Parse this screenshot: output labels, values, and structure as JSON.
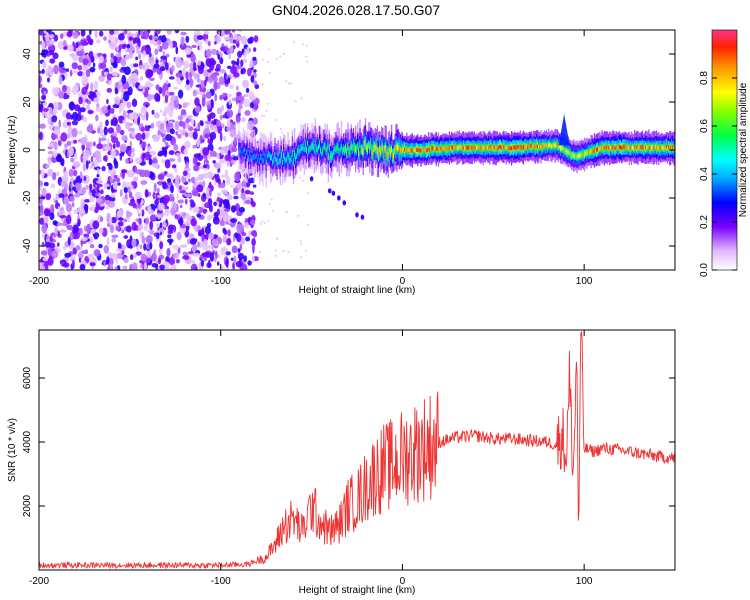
{
  "figure_title": "GN04.2026.028.17.50.G07",
  "chart_data": [
    {
      "type": "heatmap",
      "title": "GN04.2026.028.17.50.G07",
      "xlabel": "Height of straight line (km)",
      "ylabel": "Frequency (Hz)",
      "xlim": [
        -200,
        150
      ],
      "ylim": [
        -50,
        50
      ],
      "xticks": [
        -200,
        -100,
        0,
        100
      ],
      "yticks": [
        -40,
        -20,
        0,
        20,
        40
      ],
      "colorbar": {
        "label": "Normalized spectral amplitude",
        "range": [
          0,
          1
        ],
        "ticks": [
          "0.0",
          "0.2",
          "0.4",
          "0.6",
          "0.8"
        ],
        "tick_values": [
          0.0,
          0.2,
          0.4,
          0.6,
          0.8
        ]
      },
      "noise_region_x": [
        -200,
        -80
      ],
      "ridge": [
        {
          "x": -90,
          "f": 0,
          "a": 0.35
        },
        {
          "x": -80,
          "f": -3,
          "a": 0.4
        },
        {
          "x": -70,
          "f": -4,
          "a": 0.45
        },
        {
          "x": -60,
          "f": -3,
          "a": 0.5
        },
        {
          "x": -50,
          "f": 2,
          "a": 0.5
        },
        {
          "x": -40,
          "f": -1,
          "a": 0.55
        },
        {
          "x": -30,
          "f": 0,
          "a": 0.6
        },
        {
          "x": -20,
          "f": 1,
          "a": 0.7
        },
        {
          "x": -10,
          "f": -1,
          "a": 0.8
        },
        {
          "x": 0,
          "f": 0,
          "a": 0.85
        },
        {
          "x": 10,
          "f": 0,
          "a": 0.9
        },
        {
          "x": 30,
          "f": 1,
          "a": 0.85
        },
        {
          "x": 60,
          "f": 1,
          "a": 0.9
        },
        {
          "x": 85,
          "f": 2,
          "a": 0.8
        },
        {
          "x": 95,
          "f": -3,
          "a": 0.7
        },
        {
          "x": 110,
          "f": 1,
          "a": 0.9
        },
        {
          "x": 150,
          "f": 1,
          "a": 0.85
        }
      ]
    },
    {
      "type": "line",
      "xlabel": "Height of straight line (km)",
      "ylabel": "SNR (10 * v/v)",
      "xlim": [
        -200,
        150
      ],
      "ylim": [
        0,
        7500
      ],
      "xticks": [
        -200,
        -100,
        0,
        100
      ],
      "yticks": [
        2000,
        4000,
        6000
      ],
      "color": "#ee3333",
      "series": [
        {
          "name": "SNR",
          "x": [
            -200,
            -150,
            -100,
            -85,
            -75,
            -70,
            -65,
            -60,
            -55,
            -50,
            -45,
            -40,
            -35,
            -30,
            -25,
            -20,
            -15,
            -10,
            -5,
            0,
            10,
            20,
            30,
            40,
            50,
            60,
            70,
            80,
            85,
            88,
            90,
            92,
            94,
            96,
            97,
            98,
            100,
            105,
            110,
            120,
            130,
            140,
            150
          ],
          "y": [
            150,
            150,
            150,
            180,
            400,
            800,
            1400,
            1600,
            1200,
            2000,
            1500,
            1200,
            1400,
            2000,
            2200,
            2600,
            3000,
            3200,
            3300,
            3500,
            3800,
            4000,
            4150,
            4200,
            4100,
            4100,
            4050,
            4000,
            3900,
            4300,
            3500,
            5800,
            3000,
            6800,
            500,
            7400,
            3800,
            3700,
            3800,
            3750,
            3650,
            3550,
            3500
          ]
        }
      ]
    }
  ]
}
